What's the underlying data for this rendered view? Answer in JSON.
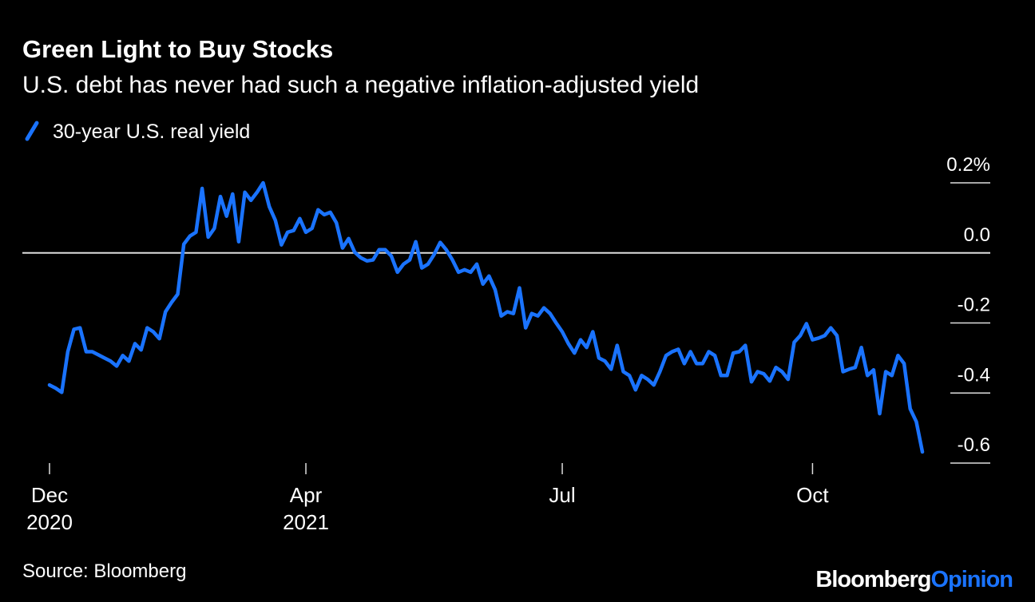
{
  "chart_data": {
    "type": "line",
    "title": "Green Light to Buy Stocks",
    "subtitle": "U.S. debt has never had such a negative inflation-adjusted yield",
    "series": [
      {
        "name": "30-year U.S. real yield",
        "color": "#1a73ff",
        "values": [
          -0.377,
          -0.386,
          -0.398,
          -0.282,
          -0.218,
          -0.214,
          -0.282,
          -0.282,
          -0.291,
          -0.3,
          -0.309,
          -0.323,
          -0.293,
          -0.309,
          -0.259,
          -0.277,
          -0.214,
          -0.225,
          -0.245,
          -0.168,
          -0.141,
          -0.118,
          0.025,
          0.048,
          0.059,
          0.184,
          0.045,
          0.07,
          0.161,
          0.105,
          0.168,
          0.032,
          0.173,
          0.15,
          0.173,
          0.2,
          0.132,
          0.093,
          0.023,
          0.059,
          0.064,
          0.098,
          0.059,
          0.07,
          0.123,
          0.109,
          0.116,
          0.086,
          0.014,
          0.041,
          0.002,
          -0.014,
          -0.023,
          -0.02,
          0.009,
          0.009,
          -0.009,
          -0.055,
          -0.032,
          -0.02,
          0.032,
          -0.043,
          -0.032,
          -0.005,
          0.03,
          0.009,
          -0.02,
          -0.055,
          -0.048,
          -0.055,
          -0.032,
          -0.089,
          -0.066,
          -0.105,
          -0.18,
          -0.168,
          -0.173,
          -0.1,
          -0.214,
          -0.173,
          -0.18,
          -0.157,
          -0.173,
          -0.2,
          -0.225,
          -0.259,
          -0.286,
          -0.248,
          -0.27,
          -0.225,
          -0.3,
          -0.309,
          -0.332,
          -0.264,
          -0.339,
          -0.35,
          -0.391,
          -0.35,
          -0.361,
          -0.377,
          -0.339,
          -0.293,
          -0.282,
          -0.275,
          -0.316,
          -0.282,
          -0.316,
          -0.316,
          -0.282,
          -0.293,
          -0.35,
          -0.35,
          -0.286,
          -0.282,
          -0.264,
          -0.368,
          -0.339,
          -0.345,
          -0.366,
          -0.327,
          -0.339,
          -0.361,
          -0.255,
          -0.236,
          -0.202,
          -0.248,
          -0.243,
          -0.236,
          -0.214,
          -0.236,
          -0.339,
          -0.332,
          -0.327,
          -0.27,
          -0.35,
          -0.334,
          -0.459,
          -0.339,
          -0.35,
          -0.293,
          -0.316,
          -0.445,
          -0.482,
          -0.568
        ]
      }
    ],
    "xlim": [
      0,
      143
    ],
    "xticks": [
      {
        "value": 0,
        "label": "Dec\n2020"
      },
      {
        "value": 42,
        "label": "Apr\n2021"
      },
      {
        "value": 84,
        "label": "Jul"
      },
      {
        "value": 125,
        "label": "Oct"
      }
    ],
    "ylim": [
      -0.6,
      0.2
    ],
    "yticks": [
      {
        "value": 0.2,
        "label": "0.2%"
      },
      {
        "value": 0,
        "label": "0.0"
      },
      -0.2,
      -0.4,
      -0.6
    ],
    "source": "Source: Bloomberg",
    "brand": {
      "name": "Bloomberg",
      "section": "Opinion",
      "section_color": "#1a73ff"
    }
  }
}
